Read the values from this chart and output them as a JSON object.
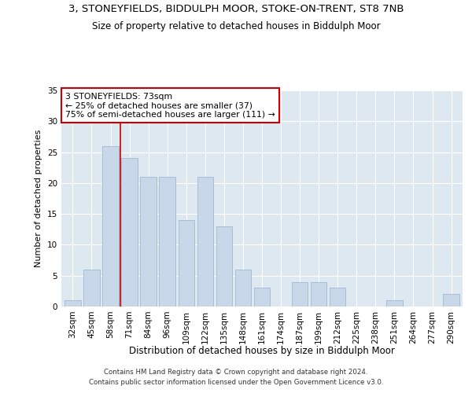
{
  "title1": "3, STONEYFIELDS, BIDDULPH MOOR, STOKE-ON-TRENT, ST8 7NB",
  "title2": "Size of property relative to detached houses in Biddulph Moor",
  "xlabel": "Distribution of detached houses by size in Biddulph Moor",
  "ylabel": "Number of detached properties",
  "categories": [
    "32sqm",
    "45sqm",
    "58sqm",
    "71sqm",
    "84sqm",
    "96sqm",
    "109sqm",
    "122sqm",
    "135sqm",
    "148sqm",
    "161sqm",
    "174sqm",
    "187sqm",
    "199sqm",
    "212sqm",
    "225sqm",
    "238sqm",
    "251sqm",
    "264sqm",
    "277sqm",
    "290sqm"
  ],
  "values": [
    1,
    6,
    26,
    24,
    21,
    21,
    14,
    21,
    13,
    6,
    3,
    0,
    4,
    4,
    3,
    0,
    0,
    1,
    0,
    0,
    2
  ],
  "bar_color": "#c8d8e8",
  "bar_edge_color": "#a0b8d0",
  "ref_line_color": "#cc0000",
  "ref_line_x": 2.5,
  "annotation_text": "3 STONEYFIELDS: 73sqm\n← 25% of detached houses are smaller (37)\n75% of semi-detached houses are larger (111) →",
  "annotation_box_facecolor": "#ffffff",
  "annotation_box_edgecolor": "#cc0000",
  "ylim": [
    0,
    35
  ],
  "yticks": [
    0,
    5,
    10,
    15,
    20,
    25,
    30,
    35
  ],
  "background_color": "#dde8f0",
  "footer1": "Contains HM Land Registry data © Crown copyright and database right 2024.",
  "footer2": "Contains public sector information licensed under the Open Government Licence v3.0."
}
